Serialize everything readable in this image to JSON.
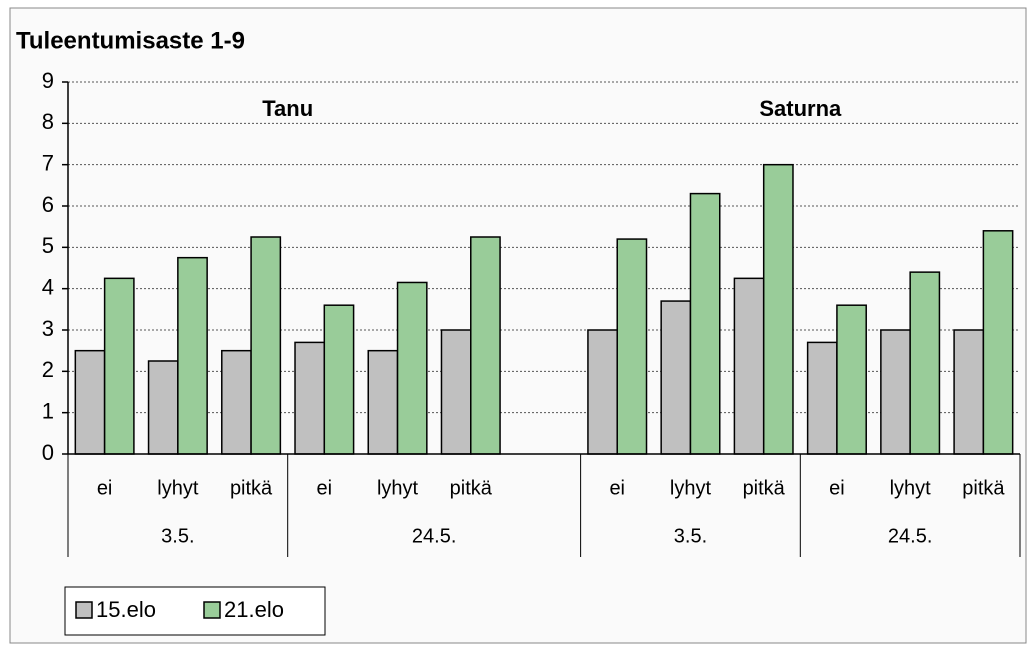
{
  "chart_data": {
    "type": "bar",
    "title": "Tuleentumisaste 1-9",
    "groups": [
      {
        "name": "Tanu",
        "dates": [
          {
            "name": "3.5.",
            "categories": [
              "ei",
              "lyhyt",
              "pitkä"
            ]
          },
          {
            "name": "24.5.",
            "categories": [
              "ei",
              "lyhyt",
              "pitkä"
            ]
          }
        ]
      },
      {
        "name": "Saturna",
        "dates": [
          {
            "name": "3.5.",
            "categories": [
              "ei",
              "lyhyt",
              "pitkä"
            ]
          },
          {
            "name": "24.5.",
            "categories": [
              "ei",
              "lyhyt",
              "pitkä"
            ]
          }
        ]
      }
    ],
    "series": [
      {
        "name": "15.elo",
        "color": "#c0c0c0",
        "values": [
          2.5,
          2.25,
          2.5,
          2.7,
          2.5,
          3.0,
          3.0,
          3.7,
          4.25,
          2.7,
          3.0,
          3.0
        ]
      },
      {
        "name": "21.elo",
        "color": "#99cc99",
        "values": [
          4.25,
          4.75,
          5.25,
          3.6,
          4.15,
          5.25,
          5.2,
          6.3,
          7.0,
          3.6,
          4.4,
          5.4
        ]
      }
    ],
    "ylim": [
      0,
      9
    ],
    "yticks": [
      0,
      1,
      2,
      3,
      4,
      5,
      6,
      7,
      8,
      9
    ],
    "grid": true,
    "legend": "bottom-left"
  }
}
